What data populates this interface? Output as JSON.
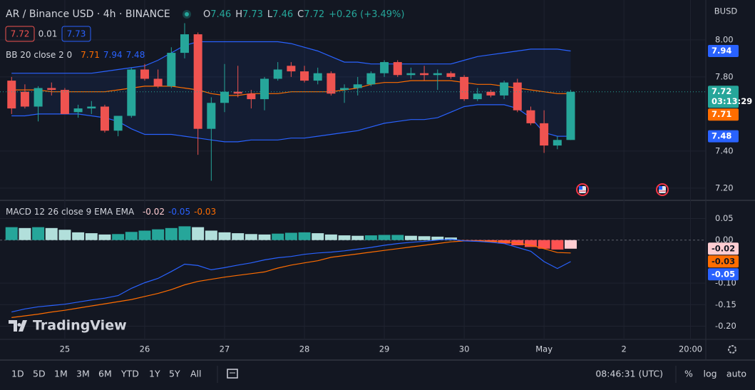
{
  "chart_data": [
    {
      "type": "candlestick",
      "title": "AR / Binance USD · 4h · BINANCE",
      "currency": "BUSD",
      "quote": [
        "7.72",
        "0.01",
        "7.73"
      ],
      "ohlc_labels": [
        "O",
        "H",
        "L",
        "C"
      ],
      "change": "+0.26 (+3.49%)",
      "countdown": "03:13:29",
      "x": [
        -4,
        -3,
        -2,
        -1,
        0,
        1,
        2,
        3,
        4,
        5,
        6,
        7,
        8,
        9,
        10,
        11,
        12,
        13,
        14,
        15,
        16,
        17,
        18,
        19,
        20,
        21,
        22,
        23,
        24,
        25,
        26,
        27,
        28,
        29,
        30,
        31,
        32,
        33,
        34,
        35,
        36,
        37,
        38
      ],
      "open": [
        7.78,
        7.72,
        7.64,
        7.74,
        7.73,
        7.61,
        7.63,
        7.64,
        7.51,
        7.59,
        7.84,
        7.79,
        7.75,
        7.93,
        8.03,
        7.52,
        7.66,
        7.72,
        7.71,
        7.68,
        7.79,
        7.86,
        7.83,
        7.78,
        7.82,
        7.73,
        7.74,
        7.76,
        7.82,
        7.88,
        7.81,
        7.82,
        7.81,
        7.82,
        7.8,
        7.68,
        7.72,
        7.7,
        7.77,
        7.62,
        7.55,
        7.43,
        7.46
      ],
      "high": [
        7.8,
        7.76,
        7.75,
        7.77,
        7.74,
        7.65,
        7.67,
        7.65,
        7.59,
        7.85,
        7.87,
        7.84,
        7.96,
        8.09,
        8.04,
        7.69,
        7.87,
        7.86,
        7.73,
        7.8,
        7.88,
        7.88,
        7.86,
        7.85,
        7.83,
        7.76,
        7.8,
        7.83,
        7.89,
        7.89,
        7.85,
        7.86,
        7.84,
        7.83,
        7.81,
        7.74,
        7.73,
        7.78,
        7.79,
        7.64,
        7.62,
        7.48,
        7.73
      ],
      "low": [
        7.6,
        7.63,
        7.56,
        7.7,
        7.6,
        7.58,
        7.6,
        7.5,
        7.48,
        7.58,
        7.78,
        7.74,
        7.74,
        7.9,
        7.38,
        7.24,
        7.61,
        7.69,
        7.63,
        7.62,
        7.78,
        7.8,
        7.77,
        7.76,
        7.7,
        7.66,
        7.7,
        7.75,
        7.8,
        7.8,
        7.79,
        7.78,
        7.73,
        7.79,
        7.67,
        7.67,
        7.69,
        7.68,
        7.61,
        7.54,
        7.39,
        7.41,
        7.46
      ],
      "close": [
        7.63,
        7.64,
        7.74,
        7.73,
        7.6,
        7.63,
        7.64,
        7.51,
        7.59,
        7.84,
        7.79,
        7.75,
        7.93,
        8.03,
        7.52,
        7.66,
        7.72,
        7.71,
        7.68,
        7.79,
        7.84,
        7.83,
        7.78,
        7.82,
        7.71,
        7.74,
        7.76,
        7.82,
        7.88,
        7.81,
        7.82,
        7.81,
        7.82,
        7.8,
        7.68,
        7.71,
        7.7,
        7.77,
        7.62,
        7.55,
        7.43,
        7.46,
        7.72
      ],
      "up_color": "#26a69a",
      "down_color": "#ef5350",
      "indicator": {
        "name": "BB 20 close 2 0",
        "upper": [
          7.82,
          7.82,
          7.82,
          7.82,
          7.82,
          7.82,
          7.82,
          7.83,
          7.84,
          7.85,
          7.86,
          7.89,
          7.93,
          7.97,
          7.99,
          7.99,
          7.99,
          7.99,
          7.99,
          7.99,
          7.99,
          7.98,
          7.96,
          7.94,
          7.91,
          7.88,
          7.88,
          7.87,
          7.87,
          7.87,
          7.87,
          7.87,
          7.87,
          7.87,
          7.89,
          7.91,
          7.92,
          7.93,
          7.94,
          7.95,
          7.95,
          7.95,
          7.94
        ],
        "basis": [
          7.73,
          7.73,
          7.73,
          7.72,
          7.72,
          7.72,
          7.72,
          7.72,
          7.73,
          7.74,
          7.75,
          7.75,
          7.75,
          7.74,
          7.73,
          7.71,
          7.7,
          7.7,
          7.71,
          7.71,
          7.71,
          7.72,
          7.72,
          7.72,
          7.72,
          7.73,
          7.74,
          7.76,
          7.77,
          7.77,
          7.78,
          7.78,
          7.78,
          7.78,
          7.77,
          7.76,
          7.76,
          7.75,
          7.74,
          7.73,
          7.72,
          7.71,
          7.71
        ],
        "lower": [
          7.59,
          7.59,
          7.6,
          7.6,
          7.6,
          7.6,
          7.59,
          7.58,
          7.56,
          7.52,
          7.49,
          7.49,
          7.49,
          7.48,
          7.47,
          7.46,
          7.45,
          7.45,
          7.46,
          7.46,
          7.46,
          7.47,
          7.47,
          7.48,
          7.49,
          7.5,
          7.51,
          7.53,
          7.55,
          7.56,
          7.57,
          7.57,
          7.58,
          7.61,
          7.64,
          7.65,
          7.65,
          7.65,
          7.63,
          7.58,
          7.5,
          7.48,
          7.48
        ],
        "band_color": "#2962ff",
        "basis_color": "#ff6d00"
      },
      "xlim": [
        -4.87,
        48.15
      ],
      "xticks": [
        {
          "value": 0,
          "label": "25"
        },
        {
          "value": 6,
          "label": "26"
        },
        {
          "value": 12,
          "label": "27"
        },
        {
          "value": 18,
          "label": "28"
        },
        {
          "value": 24,
          "label": "29"
        },
        {
          "value": 30,
          "label": "30"
        },
        {
          "value": 36,
          "label": "May"
        },
        {
          "value": 42,
          "label": "2"
        },
        {
          "value": 47,
          "label": "20:00"
        }
      ],
      "ylim": [
        7.138,
        8.215
      ],
      "yticks": [
        {
          "value": 7.2,
          "label": "7.20"
        },
        {
          "value": 7.4,
          "label": "7.40"
        },
        {
          "value": 7.8,
          "label": "7.80"
        },
        {
          "value": 8,
          "label": "8.00"
        }
      ],
      "grid": true
    },
    {
      "type": "macd",
      "name": "MACD 12 26 close 9 EMA EMA",
      "x": [
        -4,
        -3,
        -2,
        -1,
        0,
        1,
        2,
        3,
        4,
        5,
        6,
        7,
        8,
        9,
        10,
        11,
        12,
        13,
        14,
        15,
        16,
        17,
        18,
        19,
        20,
        21,
        22,
        23,
        24,
        25,
        26,
        27,
        28,
        29,
        30,
        31,
        32,
        33,
        34,
        35,
        36,
        37,
        38
      ],
      "histogram": [
        0.03,
        0.028,
        0.03,
        0.028,
        0.024,
        0.018,
        0.016,
        0.013,
        0.014,
        0.019,
        0.022,
        0.025,
        0.028,
        0.032,
        0.03,
        0.022,
        0.018,
        0.016,
        0.014,
        0.013,
        0.015,
        0.017,
        0.018,
        0.016,
        0.013,
        0.011,
        0.01,
        0.011,
        0.012,
        0.012,
        0.01,
        0.009,
        0.008,
        0.006,
        -0.001,
        -0.003,
        -0.005,
        -0.008,
        -0.012,
        -0.016,
        -0.02,
        -0.022,
        -0.02
      ],
      "macd": [
        -0.167,
        -0.16,
        -0.155,
        -0.152,
        -0.149,
        -0.144,
        -0.139,
        -0.135,
        -0.129,
        -0.112,
        -0.099,
        -0.089,
        -0.073,
        -0.056,
        -0.059,
        -0.069,
        -0.064,
        -0.058,
        -0.053,
        -0.046,
        -0.041,
        -0.038,
        -0.033,
        -0.03,
        -0.028,
        -0.025,
        -0.021,
        -0.017,
        -0.012,
        -0.008,
        -0.005,
        -0.003,
        0.0,
        0.002,
        -0.002,
        -0.003,
        -0.005,
        -0.008,
        -0.017,
        -0.026,
        -0.05,
        -0.066,
        -0.05
      ],
      "signal": [
        -0.18,
        -0.176,
        -0.172,
        -0.167,
        -0.163,
        -0.158,
        -0.153,
        -0.148,
        -0.143,
        -0.138,
        -0.131,
        -0.124,
        -0.115,
        -0.104,
        -0.096,
        -0.091,
        -0.086,
        -0.082,
        -0.078,
        -0.074,
        -0.065,
        -0.058,
        -0.053,
        -0.048,
        -0.04,
        -0.036,
        -0.032,
        -0.028,
        -0.024,
        -0.02,
        -0.016,
        -0.012,
        -0.008,
        -0.004,
        -0.002,
        -0.002,
        -0.003,
        -0.004,
        -0.007,
        -0.012,
        -0.02,
        -0.029,
        -0.03
      ],
      "macd_color": "#2962ff",
      "signal_color": "#ff6d00",
      "hist_colors": [
        "#26a69a",
        "#b2dfdb",
        "#ffcdd2",
        "#ff5252"
      ],
      "xlim": [
        -4.87,
        48.15
      ],
      "ylim": [
        -0.229,
        0.089
      ],
      "yticks": [
        {
          "value": 0.05,
          "label": "0.05"
        },
        {
          "value": 0,
          "label": "0.00"
        },
        {
          "value": -0.1,
          "label": "-0.10"
        },
        {
          "value": -0.15,
          "label": "-0.15"
        },
        {
          "value": -0.2,
          "label": "-0.20"
        }
      ],
      "grid": true
    }
  ],
  "brand": "TradingView",
  "toolbar": {
    "ranges": [
      "1D",
      "5D",
      "1M",
      "3M",
      "6M",
      "YTD",
      "1Y",
      "5Y",
      "All"
    ],
    "clock": "08:46:31 (UTC)",
    "options": [
      "%",
      "log",
      "auto"
    ]
  }
}
